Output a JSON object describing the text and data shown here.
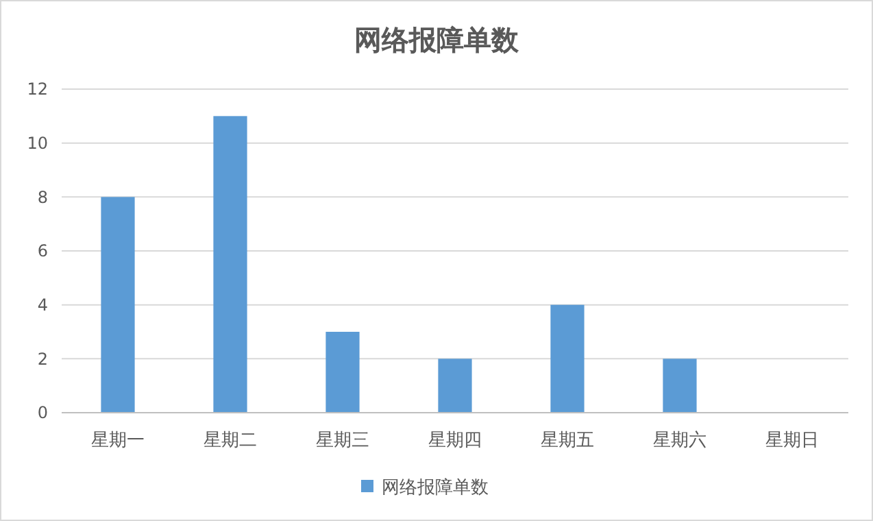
{
  "chart_data": {
    "type": "bar",
    "title": "网络报障单数",
    "categories": [
      "星期一",
      "星期二",
      "星期三",
      "星期四",
      "星期五",
      "星期六",
      "星期日"
    ],
    "series": [
      {
        "name": "网络报障单数",
        "color": "#5b9bd5",
        "values": [
          8,
          11,
          3,
          2,
          4,
          2,
          0
        ]
      }
    ],
    "ylim": [
      0,
      12
    ],
    "yticks": [
      0,
      2,
      4,
      6,
      8,
      10,
      12
    ],
    "grid": "y",
    "legend": "bottom"
  }
}
